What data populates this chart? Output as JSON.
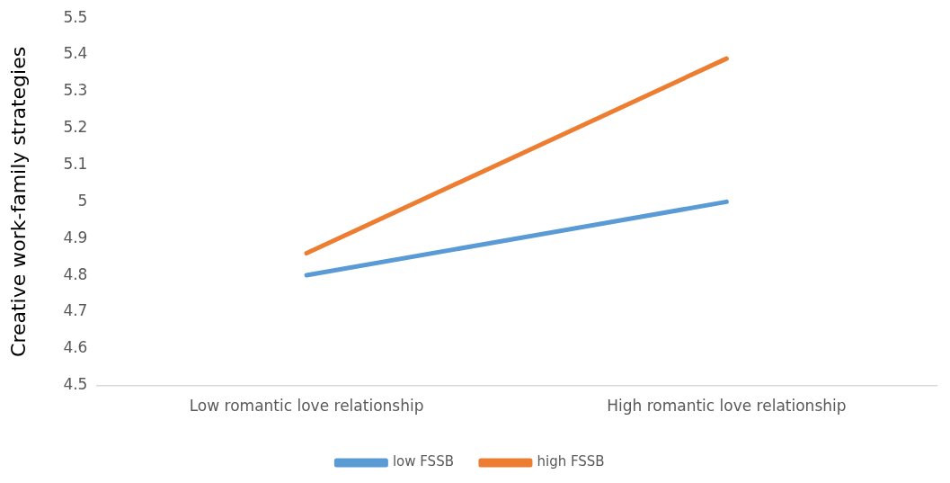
{
  "chart_data": {
    "type": "line",
    "ylabel": "Creative work-family strategies",
    "categories": [
      "Low romantic love relationship",
      "High romantic love relationship"
    ],
    "series": [
      {
        "name": "low FSSB",
        "color": "#5b9bd5",
        "values": [
          4.8,
          5.0
        ]
      },
      {
        "name": "high FSSB",
        "color": "#ed7d31",
        "values": [
          4.86,
          5.39
        ]
      }
    ],
    "ylim": [
      4.5,
      5.5
    ],
    "yticks": [
      4.5,
      4.6,
      4.7,
      4.8,
      4.9,
      5,
      5.1,
      5.2,
      5.3,
      5.4,
      5.5
    ],
    "grid": false,
    "legend": "bottom",
    "marker": "none",
    "line_style": "solid"
  }
}
